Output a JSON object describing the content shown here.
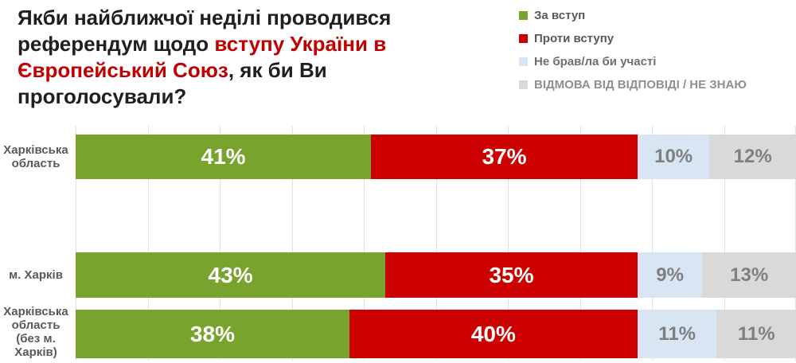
{
  "title": {
    "dark_color": "#1F1F1F",
    "red_color": "#C00000",
    "lines": [
      [
        {
          "text": "Якби найближчої неділі проводився",
          "color": "dark"
        }
      ],
      [
        {
          "text": "референдум щодо ",
          "color": "dark"
        },
        {
          "text": "вступу України в",
          "color": "red"
        }
      ],
      [
        {
          "text": "Європейський Союз",
          "color": "red"
        },
        {
          "text": ", як би Ви",
          "color": "dark"
        }
      ],
      [
        {
          "text": "проголосували?",
          "color": "dark"
        }
      ]
    ]
  },
  "legend": {
    "items": [
      {
        "label": "За вступ",
        "swatch_color": "#78A42D",
        "text_color": "#595959"
      },
      {
        "label": "Проти вступу",
        "swatch_color": "#CC0000",
        "text_color": "#595959"
      },
      {
        "label": "Не брав/ла би участі",
        "swatch_color": "#D8E6F3",
        "text_color": "#6E6E6E"
      },
      {
        "label": "ВІДМОВА ВІД ВІДПОВІДІ / НЕ ЗНАЮ",
        "swatch_color": "#D9D9D9",
        "text_color": "#8F8F8F"
      }
    ]
  },
  "chart_data": {
    "type": "bar",
    "orientation": "horizontal-stacked",
    "title": "Якби найближчої неділі проводився референдум щодо вступу України в Європейський Союз, як би Ви проголосували?",
    "xlim": [
      0,
      100
    ],
    "gridline_step_percent": 10,
    "gridline_color": "#E2E2E2",
    "value_suffix": "%",
    "categories": [
      {
        "name": "Харківська область",
        "label_lines": [
          "Харківська",
          "область"
        ]
      },
      {
        "name": "м. Харків",
        "label_lines": [
          "м. Харків"
        ]
      },
      {
        "name": "Харківська область (без м. Харків)",
        "label_lines": [
          "Харківська",
          "область",
          "(без м.",
          "Харків)"
        ]
      }
    ],
    "series": [
      {
        "name": "За вступ",
        "color": "#78A42D",
        "label_color": "#FFFFFF",
        "values": [
          41,
          43,
          38
        ]
      },
      {
        "name": "Проти вступу",
        "color": "#CC0000",
        "label_color": "#FFFFFF",
        "values": [
          37,
          35,
          40
        ]
      },
      {
        "name": "Не брав/ла би участі",
        "color": "#D8E6F3",
        "label_color": "#7F7F7F",
        "values": [
          10,
          9,
          11
        ]
      },
      {
        "name": "ВІДМОВА ВІД ВІДПОВІДІ / НЕ ЗНАЮ",
        "color": "#D9D9D9",
        "label_color": "#7F7F7F",
        "values": [
          12,
          13,
          11
        ]
      }
    ]
  }
}
